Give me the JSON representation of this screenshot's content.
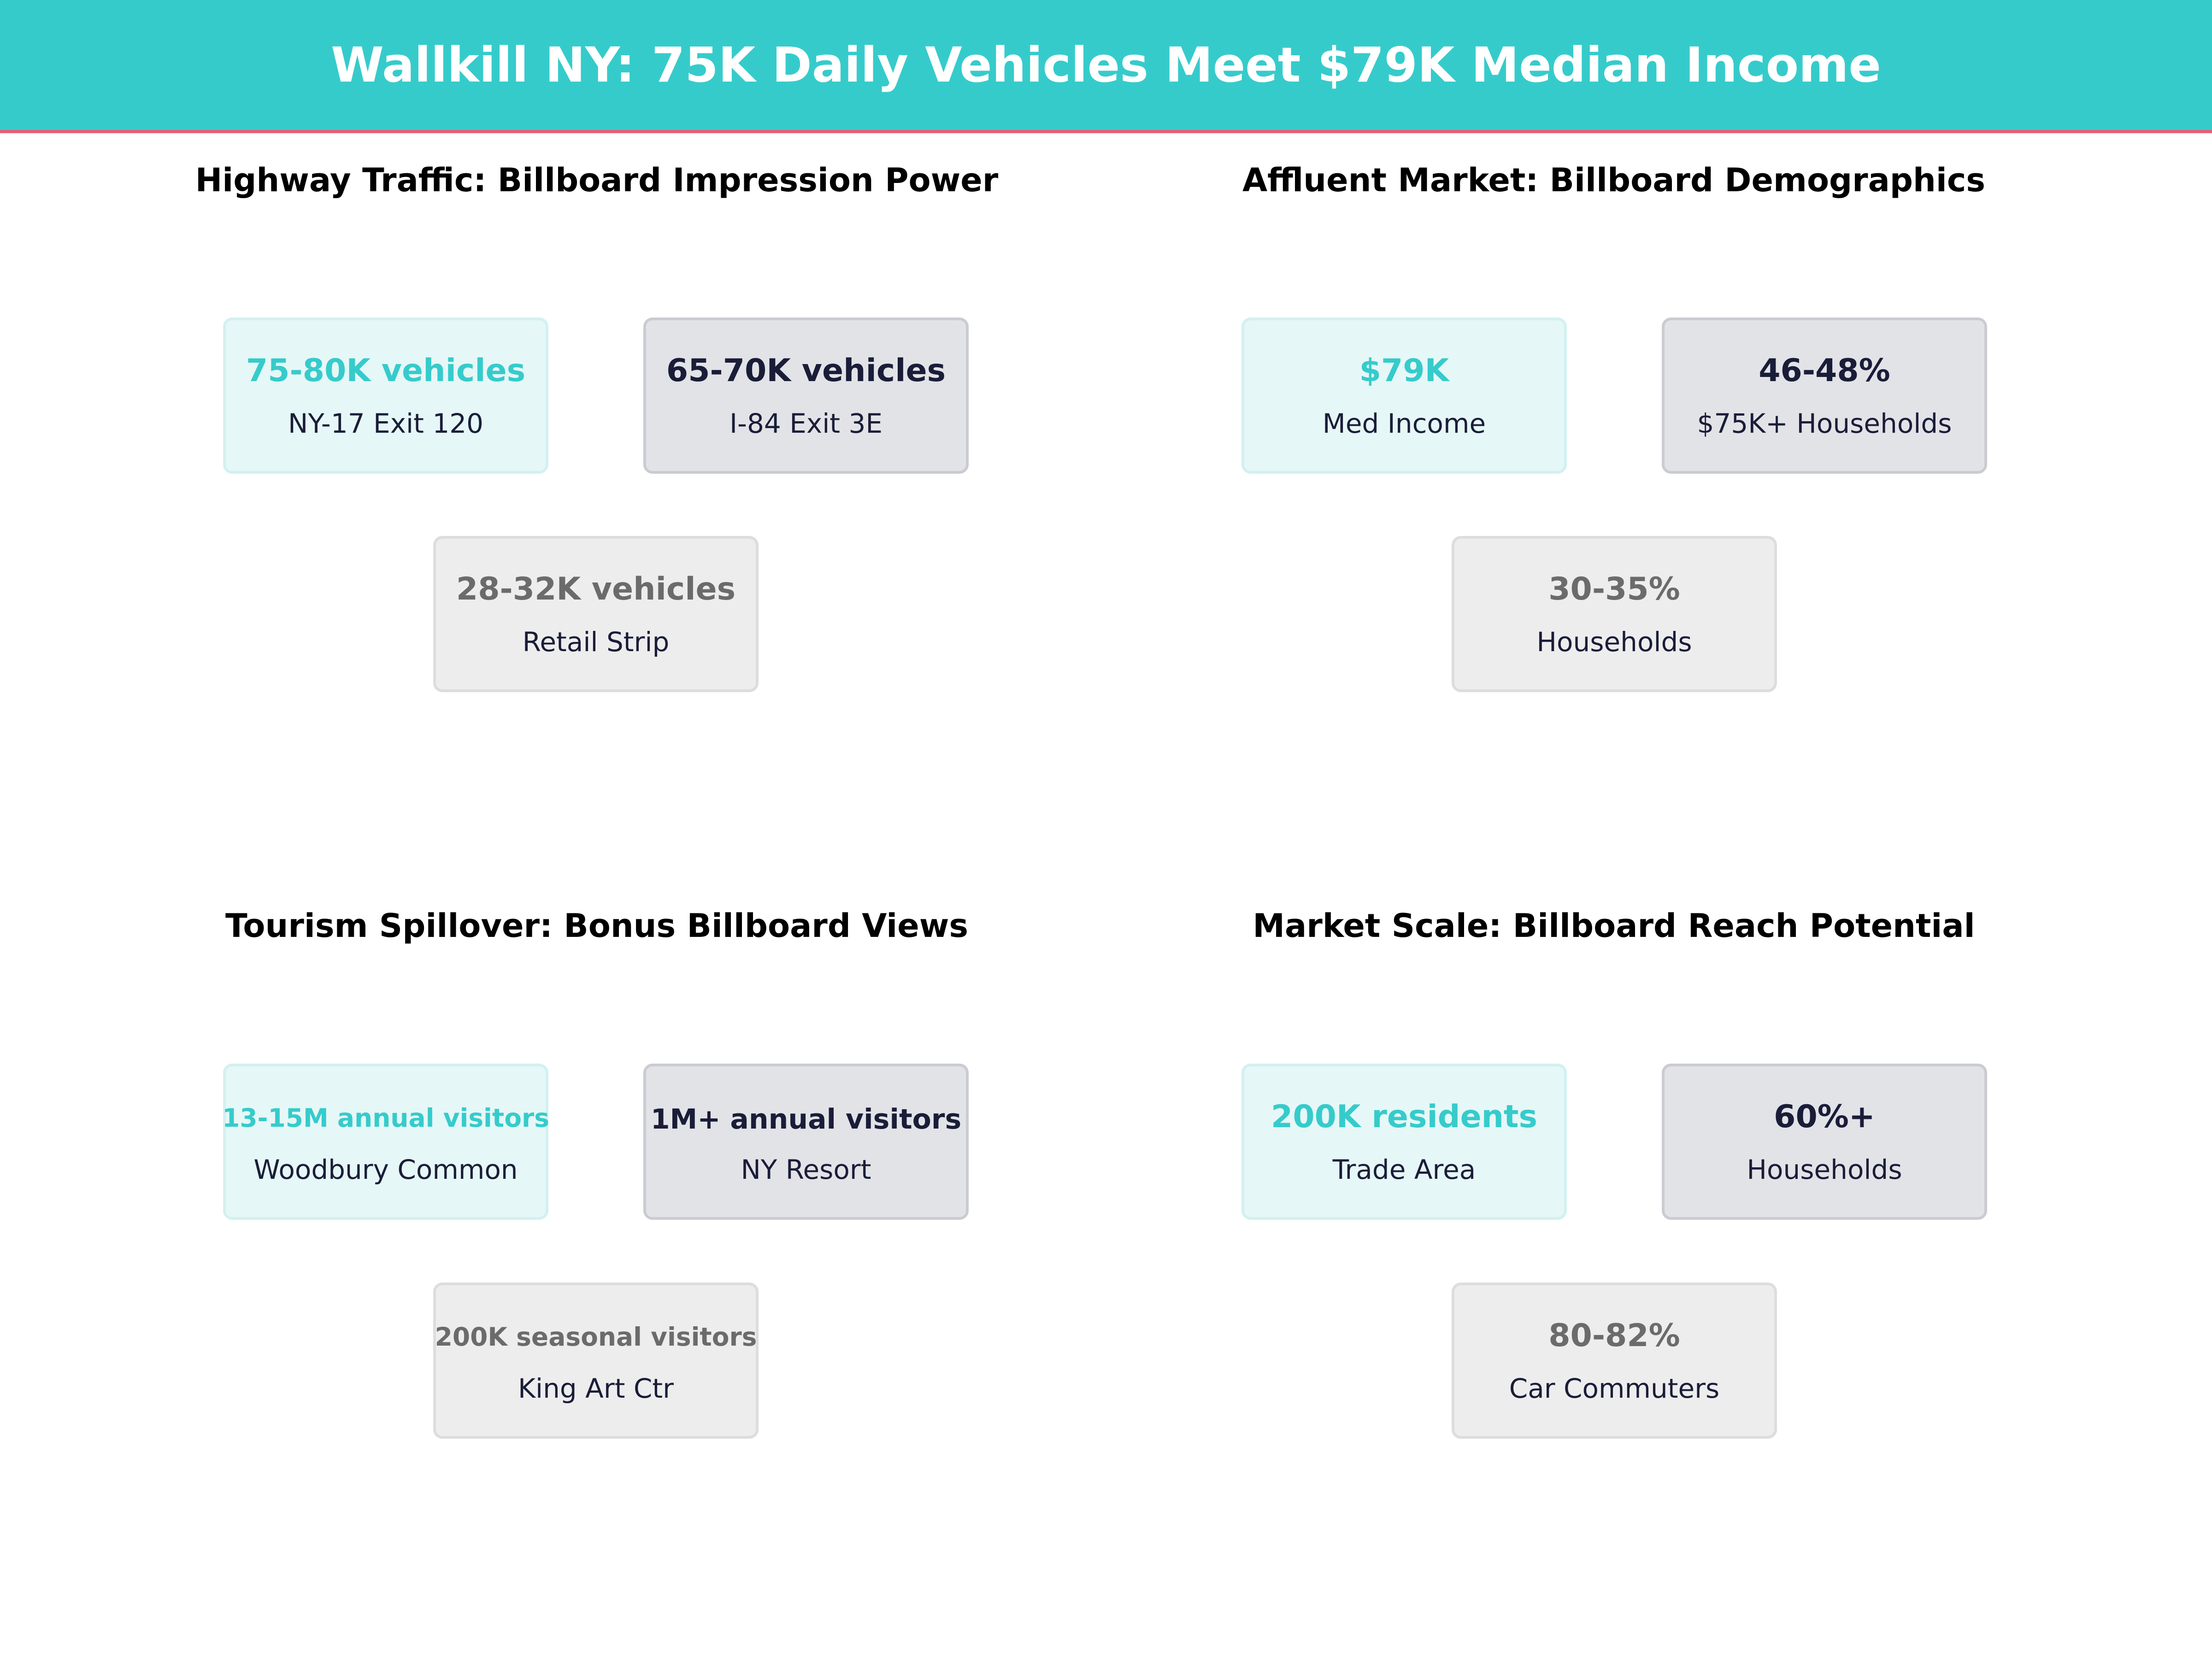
{
  "title": "Wallkill NY: 75K Daily Vehicles Meet $79K Median Income",
  "colors": {
    "header": "#36cbcb",
    "accent_line": "#e85d75",
    "primary": "#36cbcb",
    "secondary": "#1a1d38",
    "tertiary": "#6b6b6b"
  },
  "panels": [
    {
      "title": "Highway Traffic: Billboard Impression Power",
      "cards": [
        {
          "value": "75-80K vehicles",
          "label": "NY-17 Exit 120"
        },
        {
          "value": "65-70K vehicles",
          "label": "I-84 Exit 3E"
        },
        {
          "value": "28-32K vehicles",
          "label": "Retail Strip"
        }
      ]
    },
    {
      "title": "Affluent Market: Billboard Demographics",
      "cards": [
        {
          "value": "$79K",
          "label": "Med Income"
        },
        {
          "value": "46-48%",
          "label": "$75K+ Households"
        },
        {
          "value": "30-35%",
          "label": "Households"
        }
      ]
    },
    {
      "title": "Tourism Spillover: Bonus Billboard Views",
      "cards": [
        {
          "value": "13-15M annual visitors",
          "label": "Woodbury Common"
        },
        {
          "value": "1M+ annual visitors",
          "label": "NY Resort"
        },
        {
          "value": "200K seasonal visitors",
          "label": "King Art Ctr"
        }
      ]
    },
    {
      "title": "Market Scale: Billboard Reach Potential",
      "cards": [
        {
          "value": "200K residents",
          "label": "Trade Area"
        },
        {
          "value": "60%+",
          "label": "Households"
        },
        {
          "value": "80-82%",
          "label": "Car Commuters"
        }
      ]
    }
  ]
}
